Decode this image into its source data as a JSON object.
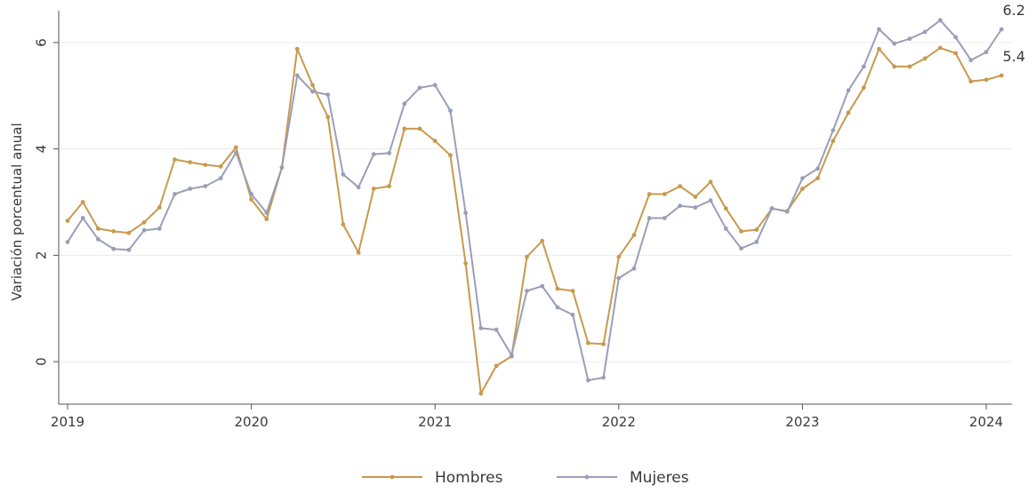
{
  "chart_data": {
    "type": "line",
    "title": "",
    "xlabel": "",
    "ylabel": "Variación porcentual anual",
    "ylim": [
      -0.8,
      6.6
    ],
    "yticks": [
      0,
      2,
      4,
      6
    ],
    "xticks": [
      {
        "value": 2019,
        "label": "2019"
      },
      {
        "value": 2020,
        "label": "2020"
      },
      {
        "value": 2021,
        "label": "2021"
      },
      {
        "value": 2022,
        "label": "2022"
      },
      {
        "value": 2023,
        "label": "2023"
      },
      {
        "value": 2024,
        "label": "2024"
      }
    ],
    "x_start": "2019-01",
    "x_end": "2024-02",
    "grid": "horizontal",
    "legend_position": "bottom",
    "series": [
      {
        "name": "Hombres",
        "color": "#c79a4e",
        "end_label": "5.4",
        "values": [
          2.65,
          3.0,
          2.5,
          2.45,
          2.42,
          2.62,
          2.9,
          3.8,
          3.75,
          3.7,
          3.67,
          4.03,
          3.05,
          2.68,
          3.65,
          5.88,
          5.2,
          4.6,
          2.58,
          2.05,
          3.25,
          3.3,
          4.38,
          4.38,
          4.15,
          3.88,
          1.85,
          -0.6,
          -0.08,
          0.1,
          1.97,
          2.27,
          1.37,
          1.33,
          0.35,
          0.33,
          1.97,
          2.38,
          3.15,
          3.15,
          3.3,
          3.1,
          3.38,
          2.88,
          2.45,
          2.48,
          2.88,
          2.83,
          3.25,
          3.45,
          4.15,
          4.68,
          5.15,
          5.88,
          5.55,
          5.55,
          5.7,
          5.9,
          5.8,
          5.27,
          5.3,
          5.38
        ]
      },
      {
        "name": "Mujeres",
        "color": "#9a9fb8",
        "end_label": "6.2",
        "values": [
          2.25,
          2.7,
          2.3,
          2.12,
          2.1,
          2.47,
          2.5,
          3.15,
          3.25,
          3.3,
          3.45,
          3.93,
          3.15,
          2.8,
          3.65,
          5.38,
          5.08,
          5.02,
          3.52,
          3.28,
          3.9,
          3.92,
          4.85,
          5.15,
          5.2,
          4.72,
          2.8,
          0.63,
          0.6,
          0.12,
          1.33,
          1.42,
          1.02,
          0.88,
          -0.35,
          -0.3,
          1.57,
          1.75,
          2.7,
          2.7,
          2.93,
          2.9,
          3.03,
          2.5,
          2.13,
          2.25,
          2.88,
          2.82,
          3.45,
          3.63,
          4.35,
          5.1,
          5.55,
          6.25,
          5.98,
          6.07,
          6.2,
          6.42,
          6.1,
          5.67,
          5.82,
          6.25
        ]
      }
    ]
  }
}
